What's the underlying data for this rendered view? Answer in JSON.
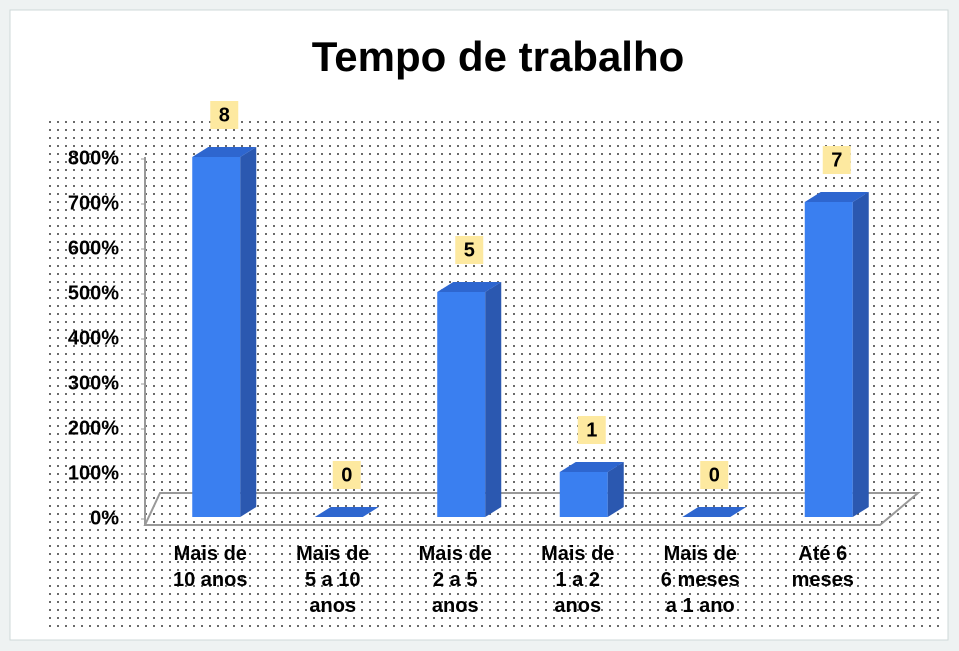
{
  "chart_data": {
    "type": "bar3d",
    "title": "Tempo de trabalho",
    "categories": [
      [
        "Mais de",
        "10 anos"
      ],
      [
        "Mais de",
        "5 a 10",
        "anos"
      ],
      [
        "Mais de",
        "2 a 5",
        "anos"
      ],
      [
        "Mais de",
        "1 a 2",
        "anos"
      ],
      [
        "Mais de",
        "6 meses",
        "a 1 ano"
      ],
      [
        "Até 6",
        "meses"
      ]
    ],
    "values": [
      8,
      0,
      5,
      1,
      0,
      7
    ],
    "color": "#3a7ff0",
    "ylim": [
      0,
      8
    ],
    "yticks": [
      {
        "value": 0,
        "label": "0%"
      },
      {
        "value": 1,
        "label": "100%"
      },
      {
        "value": 2,
        "label": "200%"
      },
      {
        "value": 3,
        "label": "300%"
      },
      {
        "value": 4,
        "label": "400%"
      },
      {
        "value": 5,
        "label": "500%"
      },
      {
        "value": 6,
        "label": "600%"
      },
      {
        "value": 7,
        "label": "700%"
      },
      {
        "value": 8,
        "label": "800%"
      }
    ],
    "label_box_color": "#fde9a0"
  }
}
